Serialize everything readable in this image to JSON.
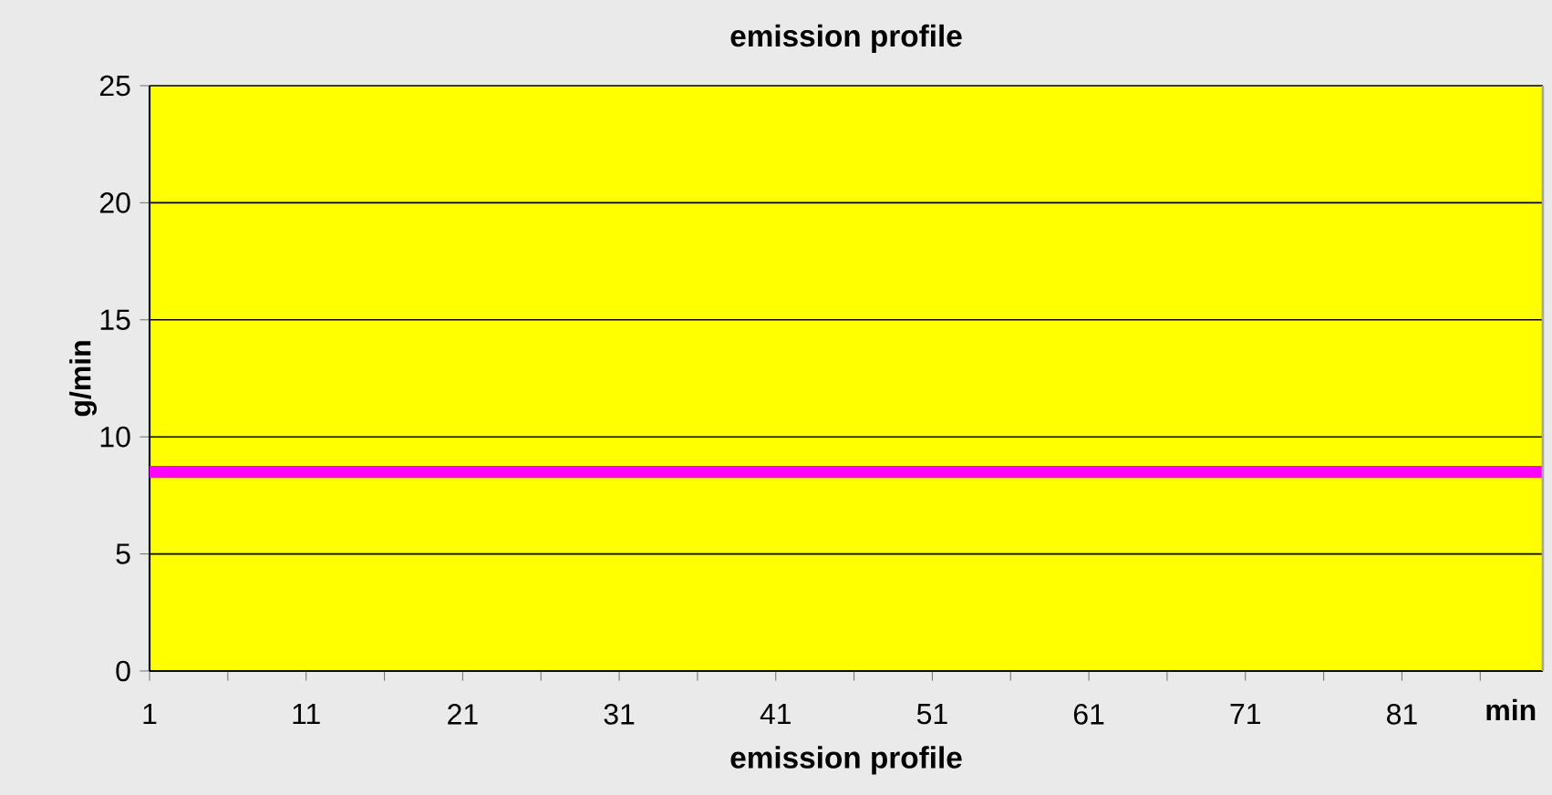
{
  "chart_data": {
    "type": "line",
    "title": "emission profile",
    "xlabel": "emission profile",
    "ylabel": "g/min",
    "annotations": [
      "min"
    ],
    "x": [
      1,
      90
    ],
    "series": [
      {
        "color": "#ff00ff",
        "values": [
          8.5,
          8.5
        ]
      }
    ],
    "xlim": [
      1,
      90
    ],
    "xticks": [
      1,
      {
        "value": 6,
        "label": null
      },
      11,
      {
        "value": 16,
        "label": null
      },
      21,
      {
        "value": 26,
        "label": null
      },
      31,
      {
        "value": 36,
        "label": null
      },
      41,
      {
        "value": 46,
        "label": null
      },
      51,
      {
        "value": 56,
        "label": null
      },
      61,
      {
        "value": 66,
        "label": null
      },
      71,
      {
        "value": 76,
        "label": null
      },
      81,
      {
        "value": 86,
        "label": null
      }
    ],
    "ylim": [
      0,
      25
    ],
    "yticks": [
      0,
      5,
      10,
      15,
      20,
      25
    ],
    "grid": "y",
    "marker": "none",
    "line_style": "solid"
  }
}
